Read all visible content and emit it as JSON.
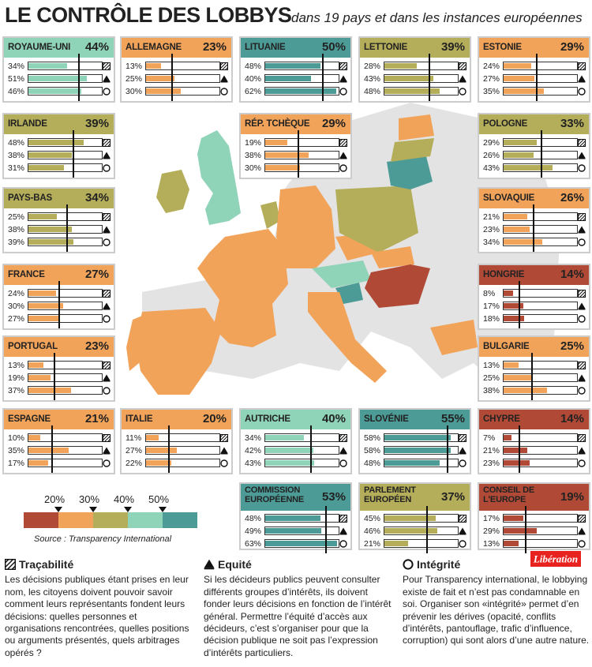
{
  "title": "LE CONTRÔLE DES LOBBYS",
  "subtitle": "dans 19 pays et dans les instances européennes",
  "colors": {
    "20": "#b04a36",
    "30": "#f2a35a",
    "40": "#b4ad5a",
    "50": "#8fd3b8",
    "55": "#4d9b96",
    "card_border": "#cfcfcf",
    "tracabilite": "#b04a36"
  },
  "chart_data": {
    "type": "table",
    "metrics": [
      "Traçabilité",
      "Equité",
      "Intégrité"
    ],
    "legend_thresholds": [
      "20%",
      "30%",
      "40%",
      "50%"
    ],
    "entities": [
      {
        "name": "ROYAUME-UNI",
        "score": "44%",
        "values": [
          "34%",
          "51%",
          "46%"
        ],
        "color": "#8fd3b8"
      },
      {
        "name": "ALLEMAGNE",
        "score": "23%",
        "values": [
          "13%",
          "25%",
          "30%"
        ],
        "color": "#f2a35a"
      },
      {
        "name": "LITUANIE",
        "score": "50%",
        "values": [
          "48%",
          "40%",
          "62%"
        ],
        "color": "#4d9b96"
      },
      {
        "name": "LETTONIE",
        "score": "39%",
        "values": [
          "28%",
          "43%",
          "48%"
        ],
        "color": "#b4ad5a"
      },
      {
        "name": "ESTONIE",
        "score": "29%",
        "values": [
          "24%",
          "27%",
          "35%"
        ],
        "color": "#f2a35a"
      },
      {
        "name": "IRLANDE",
        "score": "39%",
        "values": [
          "48%",
          "38%",
          "31%"
        ],
        "color": "#b4ad5a"
      },
      {
        "name": "RÉP. TCHÈQUE",
        "score": "29%",
        "values": [
          "19%",
          "38%",
          "30%"
        ],
        "color": "#f2a35a"
      },
      {
        "name": "POLOGNE",
        "score": "33%",
        "values": [
          "29%",
          "26%",
          "43%"
        ],
        "color": "#b4ad5a"
      },
      {
        "name": "PAYS-BAS",
        "score": "34%",
        "values": [
          "25%",
          "38%",
          "39%"
        ],
        "color": "#b4ad5a"
      },
      {
        "name": "SLOVAQUIE",
        "score": "26%",
        "values": [
          "21%",
          "23%",
          "34%"
        ],
        "color": "#f2a35a"
      },
      {
        "name": "FRANCE",
        "score": "27%",
        "values": [
          "24%",
          "30%",
          "27%"
        ],
        "color": "#f2a35a"
      },
      {
        "name": "HONGRIE",
        "score": "14%",
        "values": [
          "8%",
          "17%",
          "18%"
        ],
        "color": "#b04a36"
      },
      {
        "name": "PORTUGAL",
        "score": "23%",
        "values": [
          "13%",
          "19%",
          "37%"
        ],
        "color": "#f2a35a"
      },
      {
        "name": "BULGARIE",
        "score": "25%",
        "values": [
          "13%",
          "25%",
          "38%"
        ],
        "color": "#f2a35a"
      },
      {
        "name": "ESPAGNE",
        "score": "21%",
        "values": [
          "10%",
          "35%",
          "17%"
        ],
        "color": "#f2a35a"
      },
      {
        "name": "ITALIE",
        "score": "20%",
        "values": [
          "11%",
          "27%",
          "22%"
        ],
        "color": "#f2a35a"
      },
      {
        "name": "AUTRICHE",
        "score": "40%",
        "values": [
          "34%",
          "42%",
          "43%"
        ],
        "color": "#8fd3b8"
      },
      {
        "name": "SLOVÉNIE",
        "score": "55%",
        "values": [
          "58%",
          "58%",
          "48%"
        ],
        "color": "#4d9b96"
      },
      {
        "name": "CHYPRE",
        "score": "14%",
        "values": [
          "7%",
          "21%",
          "23%"
        ],
        "color": "#b04a36"
      },
      {
        "name": "COMMISSION EUROPÉENNE",
        "score": "53%",
        "values": [
          "48%",
          "49%",
          "63%"
        ],
        "color": "#4d9b96"
      },
      {
        "name": "PARLEMENT EUROPÉEN",
        "score": "37%",
        "values": [
          "45%",
          "46%",
          "21%"
        ],
        "color": "#b4ad5a"
      },
      {
        "name": "CONSEIL DE L'EUROPE",
        "score": "19%",
        "values": [
          "17%",
          "29%",
          "13%"
        ],
        "color": "#b04a36"
      }
    ]
  },
  "legend": {
    "source": "Source : Transparency International"
  },
  "definitions": [
    {
      "icon": "hatched-square-icon",
      "title": "Traçabilité",
      "text": "Les décisions publiques étant prises en leur nom, les citoyens doivent pouvoir savoir comment leurs représentants fondent leurs décisions: quelles personnes et organisations rencontrées, quelles positions ou arguments présentés, quels arbitrages opérés ?"
    },
    {
      "icon": "triangle-icon",
      "title": "Equité",
      "text": "Si les décideurs publics peuvent consulter différents groupes d’intérêts, ils doivent fonder leurs décisions en fonction de l’intérêt général. Permettre l’équité d’accès aux décideurs, c’est s’organiser pour que la décision publique ne soit pas l’expression d’intérêts particuliers."
    },
    {
      "icon": "circle-icon",
      "title": "Intégrité",
      "text": "Pour Transparency international, le lobbying existe de fait et n’est pas condamnable en soi. Organiser son «intégrité» permet d’en prévenir les dérives (opacité, conflits d’intérêts, pantouflage, trafic d’influence, corruption) qui sont alors d’une autre nature."
    }
  ],
  "logo": "Libération"
}
